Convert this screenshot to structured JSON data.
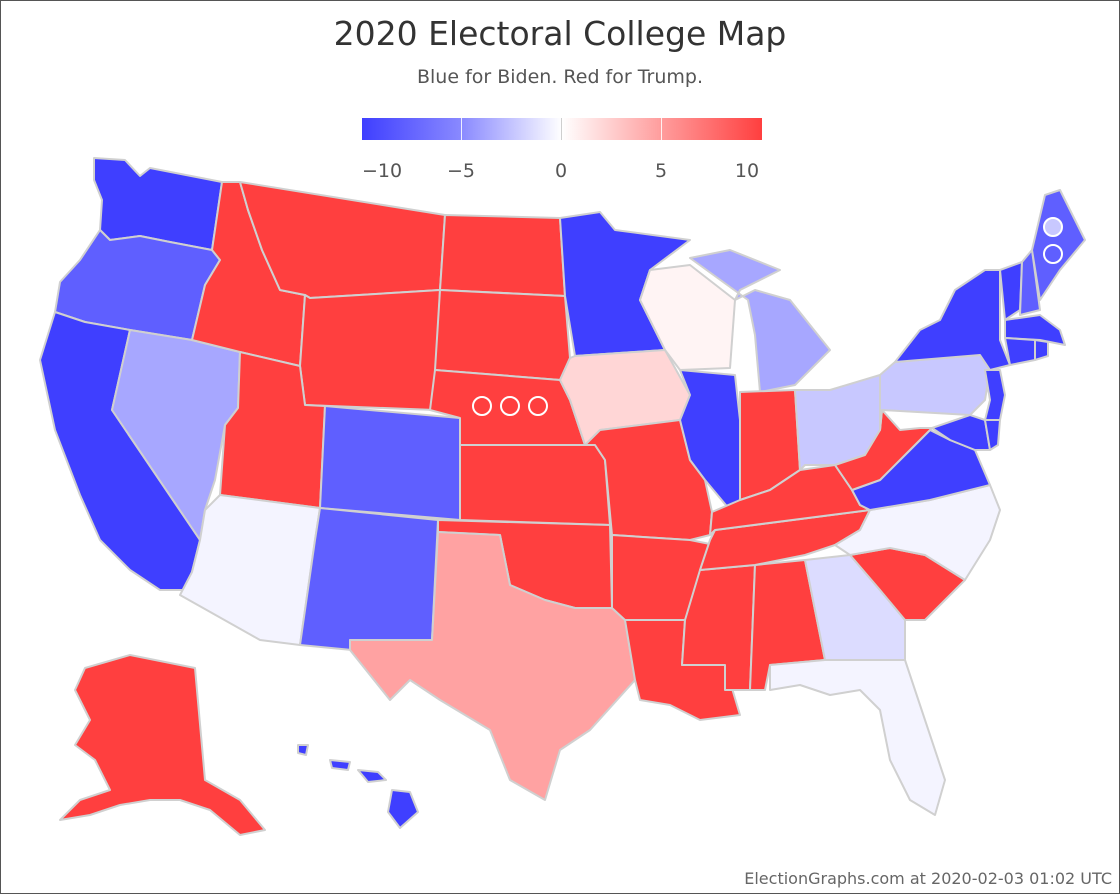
{
  "title": "2020 Electoral College Map",
  "subtitle": "Blue for Biden. Red for Trump.",
  "legend": {
    "labels": [
      "−10",
      "−5",
      "0",
      "5",
      "10"
    ],
    "min_color": "#3f3fff",
    "mid_color": "#ffffff",
    "max_color": "#ff3f3f"
  },
  "colors": {
    "strong_dem": "#3f3fff",
    "dem": "#5f5fff",
    "lean_dem": "#a7a7ff",
    "tilt_dem": "#c8c8ff",
    "weak_dem": "#dcdcff",
    "barely_dem": "#f4f4ff",
    "barely_rep": "#fff4f4",
    "weak_rep": "#ffd6d6",
    "lean_rep": "#ffa2a2",
    "strong_rep": "#ff3f3f",
    "border": "#d0d0d0"
  },
  "states": [
    {
      "name": "WA",
      "color": "strong_dem"
    },
    {
      "name": "OR",
      "color": "dem"
    },
    {
      "name": "CA",
      "color": "strong_dem"
    },
    {
      "name": "NV",
      "color": "lean_dem"
    },
    {
      "name": "ID",
      "color": "strong_rep"
    },
    {
      "name": "MT",
      "color": "strong_rep"
    },
    {
      "name": "WY",
      "color": "strong_rep"
    },
    {
      "name": "UT",
      "color": "strong_rep"
    },
    {
      "name": "AZ",
      "color": "barely_dem"
    },
    {
      "name": "CO",
      "color": "dem"
    },
    {
      "name": "NM",
      "color": "dem"
    },
    {
      "name": "ND",
      "color": "strong_rep"
    },
    {
      "name": "SD",
      "color": "strong_rep"
    },
    {
      "name": "NE",
      "color": "strong_rep"
    },
    {
      "name": "KS",
      "color": "strong_rep"
    },
    {
      "name": "OK",
      "color": "strong_rep"
    },
    {
      "name": "TX",
      "color": "lean_rep"
    },
    {
      "name": "MN",
      "color": "strong_dem"
    },
    {
      "name": "IA",
      "color": "weak_rep"
    },
    {
      "name": "MO",
      "color": "strong_rep"
    },
    {
      "name": "AR",
      "color": "strong_rep"
    },
    {
      "name": "LA",
      "color": "strong_rep"
    },
    {
      "name": "WI",
      "color": "barely_rep"
    },
    {
      "name": "IL",
      "color": "strong_dem"
    },
    {
      "name": "MI",
      "color": "lean_dem"
    },
    {
      "name": "IN",
      "color": "strong_rep"
    },
    {
      "name": "OH",
      "color": "tilt_dem"
    },
    {
      "name": "KY",
      "color": "strong_rep"
    },
    {
      "name": "TN",
      "color": "strong_rep"
    },
    {
      "name": "MS",
      "color": "strong_rep"
    },
    {
      "name": "AL",
      "color": "strong_rep"
    },
    {
      "name": "GA",
      "color": "weak_dem"
    },
    {
      "name": "FL",
      "color": "barely_dem"
    },
    {
      "name": "SC",
      "color": "strong_rep"
    },
    {
      "name": "NC",
      "color": "barely_dem"
    },
    {
      "name": "VA",
      "color": "strong_dem"
    },
    {
      "name": "WV",
      "color": "strong_rep"
    },
    {
      "name": "PA",
      "color": "tilt_dem"
    },
    {
      "name": "NY",
      "color": "strong_dem"
    },
    {
      "name": "NJ",
      "color": "strong_dem"
    },
    {
      "name": "MD",
      "color": "strong_dem"
    },
    {
      "name": "DE",
      "color": "strong_dem"
    },
    {
      "name": "VT",
      "color": "strong_dem"
    },
    {
      "name": "NH",
      "color": "dem"
    },
    {
      "name": "ME",
      "color": "dem"
    },
    {
      "name": "MA",
      "color": "strong_dem"
    },
    {
      "name": "CT",
      "color": "strong_dem"
    },
    {
      "name": "RI",
      "color": "strong_dem"
    },
    {
      "name": "AK",
      "color": "strong_rep"
    },
    {
      "name": "HI",
      "color": "strong_dem"
    }
  ],
  "credit": "ElectionGraphs.com at 2020-02-03 01:02 UTC"
}
